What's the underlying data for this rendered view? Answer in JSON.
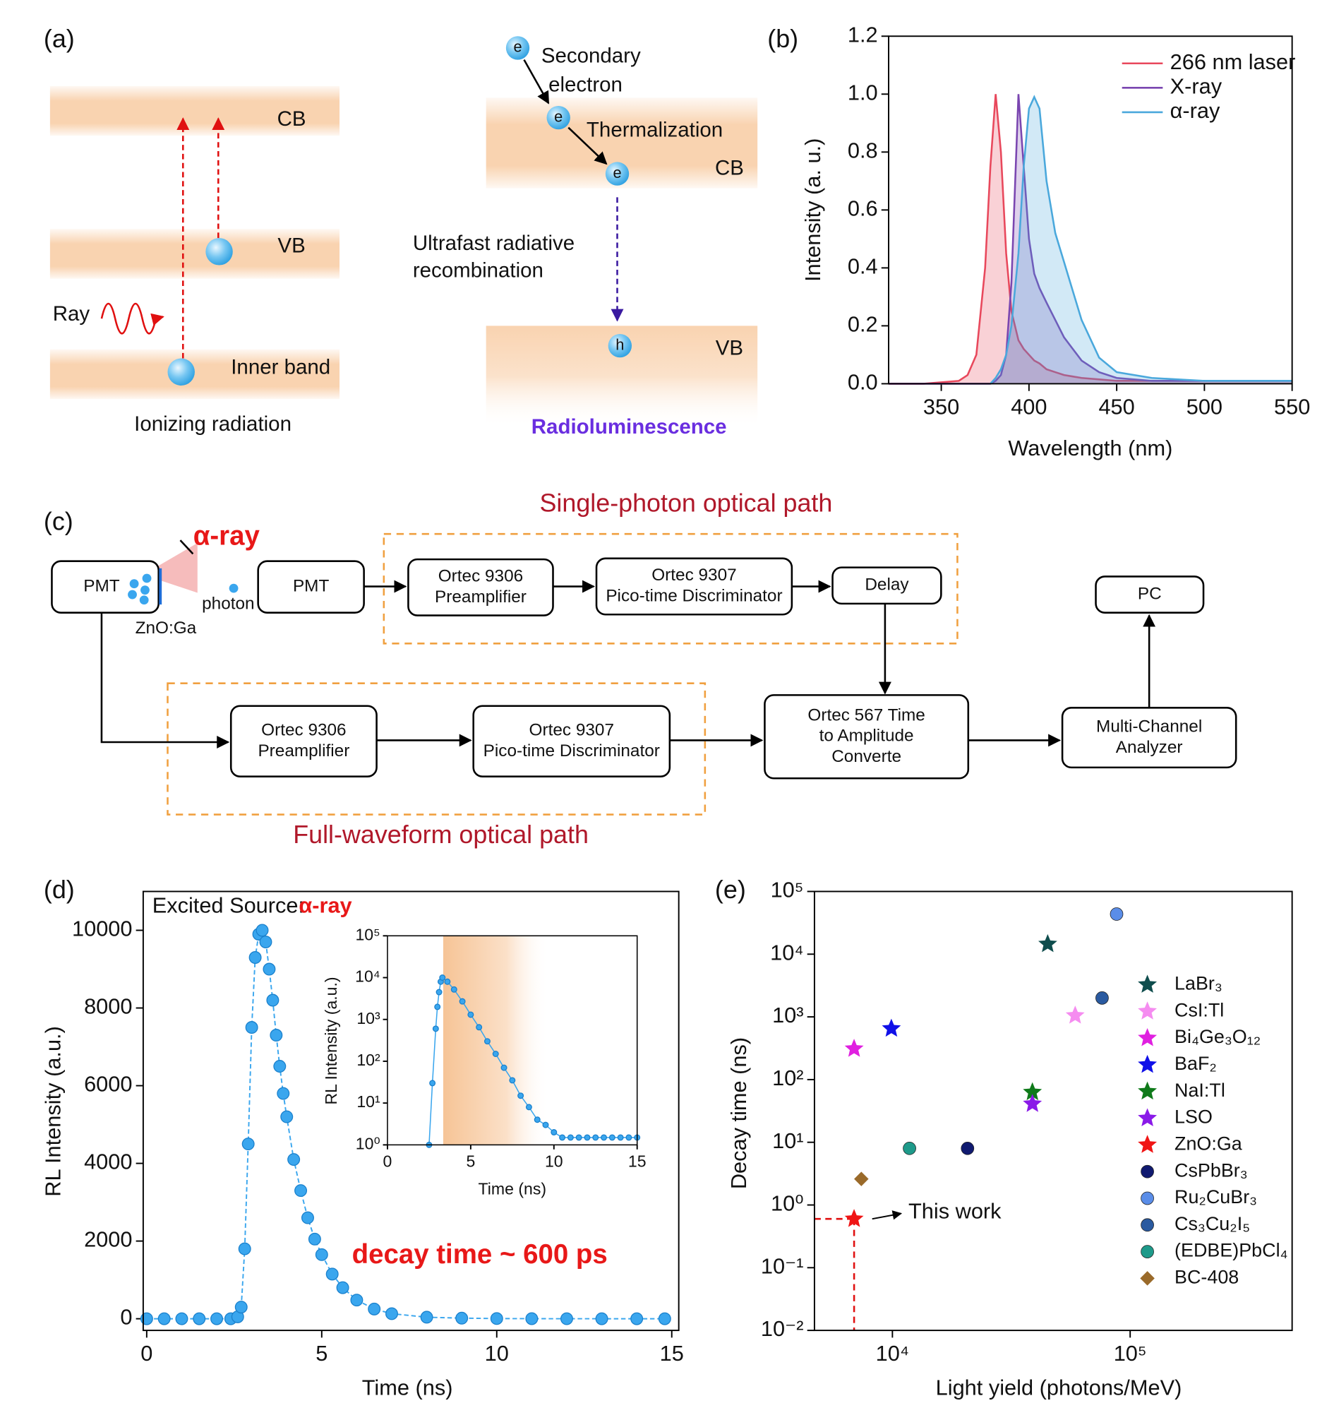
{
  "panel_a": {
    "label": "(a)",
    "ionizing": {
      "bands": [
        "CB",
        "VB",
        "Inner band"
      ],
      "ray": "Ray",
      "caption": "Ionizing radiation"
    },
    "radioluminescence": {
      "secondary": [
        "Secondary",
        "electron"
      ],
      "thermalization": "Thermalization",
      "bands": [
        "CB",
        "VB"
      ],
      "recombination": [
        "Ultrafast radiative",
        "recombination"
      ],
      "electron": "e",
      "hole": "h",
      "caption": "Radioluminescence"
    }
  },
  "panel_c": {
    "label": "(c)",
    "source": "α-ray",
    "sample": "ZnO:Ga",
    "photon": "photon",
    "single_photon_path": "Single-photon optical path",
    "full_waveform_path": "Full-waveform optical path",
    "nodes": [
      {
        "lines": [
          "PMT"
        ]
      },
      {
        "lines": [
          "PMT"
        ]
      },
      {
        "lines": [
          "Ortec 9306",
          "Preamplifier"
        ]
      },
      {
        "lines": [
          "Ortec 9307",
          "Pico-time Discriminator"
        ]
      },
      {
        "lines": [
          "Delay"
        ]
      },
      {
        "lines": [
          "PC"
        ]
      },
      {
        "lines": [
          "Ortec 9306",
          "Preamplifier"
        ]
      },
      {
        "lines": [
          "Ortec 9307",
          "Pico-time Discriminator"
        ]
      },
      {
        "lines": [
          "Ortec 567 Time",
          "to Amplitude",
          "Converte"
        ]
      },
      {
        "lines": [
          "Multi-Channel",
          "Analyzer"
        ]
      }
    ]
  },
  "chart_data": [
    {
      "type": "line",
      "panel_label": "(b)",
      "xlabel": "Wavelength (nm)",
      "ylabel": "Intensity (a. u.)",
      "x": [
        320,
        340,
        360,
        365,
        370,
        375,
        378,
        381,
        384,
        387,
        390,
        394,
        397,
        400,
        403,
        406,
        410,
        415,
        420,
        425,
        430,
        440,
        450,
        470,
        500,
        550
      ],
      "series": [
        {
          "name": "266 nm laser",
          "color": "#e8485c",
          "values": [
            0,
            0,
            0.01,
            0.03,
            0.1,
            0.4,
            0.75,
            1.0,
            0.8,
            0.45,
            0.25,
            0.15,
            0.12,
            0.1,
            0.08,
            0.07,
            0.05,
            0.04,
            0.03,
            0.025,
            0.02,
            0.015,
            0.01,
            0.01,
            0.01,
            0.01
          ]
        },
        {
          "name": "X-ray",
          "color": "#7a46b0",
          "values": [
            0,
            0,
            0,
            0,
            0,
            0,
            0,
            0.01,
            0.03,
            0.1,
            0.35,
            1.0,
            0.75,
            0.5,
            0.38,
            0.33,
            0.28,
            0.22,
            0.16,
            0.12,
            0.08,
            0.04,
            0.02,
            0.01,
            0.01,
            0.01
          ]
        },
        {
          "name": "α-ray",
          "color": "#4aa8dc",
          "values": [
            null,
            null,
            null,
            null,
            null,
            null,
            0,
            0.02,
            0.05,
            0.1,
            0.2,
            0.45,
            0.75,
            0.95,
            0.99,
            0.95,
            0.7,
            0.52,
            0.42,
            0.32,
            0.22,
            0.09,
            0.04,
            0.02,
            0.01,
            0.01
          ]
        }
      ],
      "fill": true,
      "legend": "upper right",
      "xlim": [
        320,
        550
      ],
      "xticks": [
        350,
        400,
        450,
        500,
        550
      ],
      "ylim": [
        0,
        1.2
      ],
      "yticks": [
        {
          "value": 0,
          "label": "0.0"
        },
        0.2,
        0.4,
        0.6,
        0.8,
        {
          "value": 1,
          "label": "1.0"
        },
        1.2
      ]
    },
    {
      "type": "scatter",
      "panel_label": "(d)",
      "xlabel": "Time (ns)",
      "ylabel": "RL Intensity (a.u.)",
      "color": "#3aa6ee",
      "x": [
        0,
        0.5,
        1,
        1.5,
        2,
        2.4,
        2.6,
        2.7,
        2.8,
        2.9,
        3.0,
        3.1,
        3.2,
        3.3,
        3.4,
        3.5,
        3.6,
        3.7,
        3.8,
        3.9,
        4.0,
        4.2,
        4.4,
        4.6,
        4.8,
        5.0,
        5.3,
        5.6,
        6.0,
        6.5,
        7,
        8,
        9,
        10,
        11,
        12,
        13,
        14,
        14.8
      ],
      "values": [
        0,
        0,
        0,
        0,
        0,
        0,
        50,
        300,
        1800,
        4500,
        7500,
        9300,
        9900,
        10000,
        9700,
        9000,
        8200,
        7300,
        6500,
        5800,
        5200,
        4100,
        3300,
        2600,
        2050,
        1650,
        1150,
        800,
        480,
        250,
        130,
        40,
        15,
        5,
        2,
        1,
        0,
        0,
        0
      ],
      "xlim": [
        -0.1,
        15.2
      ],
      "xticks": [
        0,
        5,
        10,
        15
      ],
      "ylim": [
        -300,
        11000
      ],
      "yticks": [
        0,
        2000,
        4000,
        6000,
        8000,
        10000
      ],
      "annotations": {
        "source_prefix": "Excited Source:",
        "source": "α-ray",
        "result": "decay time ~ 600 ps"
      }
    },
    {
      "type": "scatter",
      "xlabel": "Time (ns)",
      "ylabel": "RL Intensity (a.u.)",
      "color": "#3aa6ee",
      "ylog": true,
      "x": [
        2.5,
        2.7,
        2.9,
        3.0,
        3.1,
        3.2,
        3.3,
        3.6,
        4,
        4.5,
        5,
        5.5,
        6,
        6.5,
        7,
        7.5,
        8,
        8.5,
        9,
        9.5,
        10,
        10.5,
        11,
        11.5,
        12,
        12.5,
        13,
        13.5,
        14,
        14.5,
        15
      ],
      "values": [
        1,
        30,
        600,
        2000,
        4500,
        8000,
        10000,
        8000,
        5200,
        2700,
        1300,
        650,
        300,
        150,
        70,
        35,
        15,
        8,
        4,
        3,
        2,
        1.5,
        1.5,
        1.5,
        1.5,
        1.5,
        1.5,
        1.5,
        1.5,
        1.5,
        1.5
      ],
      "highlight_range": [
        3.35,
        9.7
      ],
      "xlim": [
        0,
        15
      ],
      "xticks": [
        0,
        5,
        10,
        15
      ],
      "ylim": [
        1,
        100000
      ],
      "yticks": [
        {
          "value": 1,
          "label": "10⁰"
        },
        {
          "value": 10,
          "label": "10¹"
        },
        {
          "value": 100,
          "label": "10²"
        },
        {
          "value": 1000,
          "label": "10³"
        },
        {
          "value": 10000,
          "label": "10⁴"
        },
        {
          "value": 100000,
          "label": "10⁵"
        }
      ]
    },
    {
      "type": "scatter",
      "panel_label": "(e)",
      "xlabel": "Light yield (photons/MeV)",
      "ylabel": "Decay time (ns)",
      "xlog": true,
      "ylog": true,
      "legend": "right",
      "annotation": "This work",
      "series": [
        {
          "name": "LaBr₃",
          "color": "#0f4d4d",
          "marker": "star",
          "x": [
            45000
          ],
          "values": [
            14500
          ]
        },
        {
          "name": "CsI:Tl",
          "color": "#f58cf0",
          "marker": "star",
          "x": [
            58700
          ],
          "values": [
            1050
          ]
        },
        {
          "name": "Bi₄Ge₃O₁₂",
          "color": "#e020e0",
          "marker": "star",
          "x": [
            6900
          ],
          "values": [
            310
          ]
        },
        {
          "name": "BaF₂",
          "color": "#1010e8",
          "marker": "star",
          "x": [
            9900
          ],
          "values": [
            650
          ]
        },
        {
          "name": "NaI:Tl",
          "color": "#0f7a1a",
          "marker": "star",
          "x": [
            38800
          ],
          "values": [
            63
          ]
        },
        {
          "name": "LSO",
          "color": "#8a1ae8",
          "marker": "star",
          "x": [
            38800
          ],
          "values": [
            41
          ]
        },
        {
          "name": "ZnO:Ga",
          "color": "#f01515",
          "marker": "star",
          "x": [
            6900
          ],
          "values": [
            0.6
          ]
        },
        {
          "name": "CsPbBr₃",
          "color": "#101a70",
          "marker": "circle",
          "x": [
            20700
          ],
          "values": [
            8
          ]
        },
        {
          "name": "Ru₂CuBr₃",
          "color": "#5a8de8",
          "marker": "circle",
          "x": [
            87700
          ],
          "values": [
            43600
          ]
        },
        {
          "name": "Cs₃Cu₂I₅",
          "color": "#2a5aa0",
          "marker": "circle",
          "x": [
            76200
          ],
          "values": [
            2000
          ]
        },
        {
          "name": "(EDBE)PbCl₄",
          "color": "#1e9a8a",
          "marker": "circle",
          "x": [
            11800
          ],
          "values": [
            8
          ]
        },
        {
          "name": "BC-408",
          "color": "#9a6a2a",
          "marker": "diamond",
          "x": [
            7400
          ],
          "values": [
            2.6
          ]
        }
      ],
      "xlim": [
        4700,
        480000
      ],
      "xticks": [
        {
          "value": 10000,
          "label": "10⁴"
        },
        {
          "value": 100000,
          "label": "10⁵"
        }
      ],
      "ylim": [
        0.01,
        100000
      ],
      "yticks": [
        {
          "value": 0.01,
          "label": "10⁻²"
        },
        {
          "value": 0.1,
          "label": "10⁻¹"
        },
        {
          "value": 1,
          "label": "10⁰"
        },
        {
          "value": 10,
          "label": "10¹"
        },
        {
          "value": 100,
          "label": "10²"
        },
        {
          "value": 1000,
          "label": "10³"
        },
        {
          "value": 10000,
          "label": "10⁴"
        },
        {
          "value": 100000,
          "label": "10⁵"
        }
      ]
    }
  ]
}
